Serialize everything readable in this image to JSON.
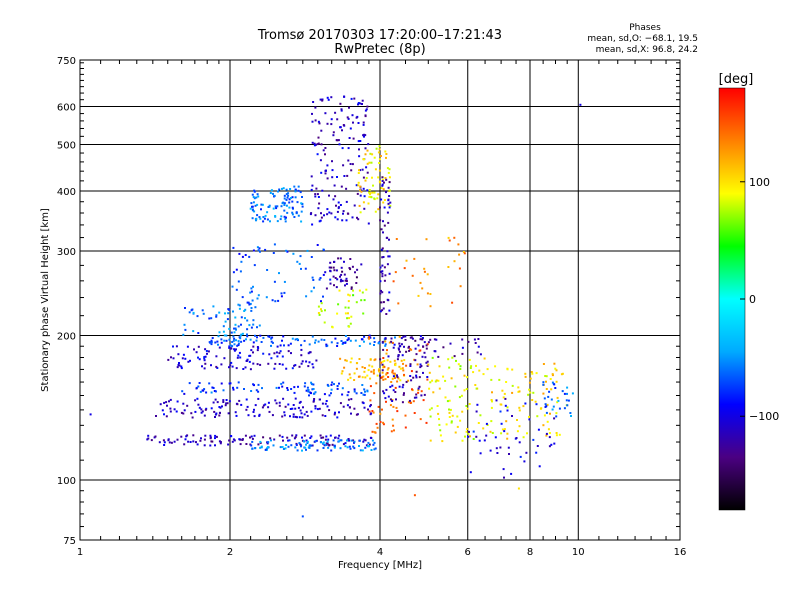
{
  "title": {
    "line1": "Tromsø 20170303 17:20:00–17:21:43",
    "line2": "RwPretec (8p)"
  },
  "phases": {
    "heading": "Phases",
    "o_line": "mean, sd,O: −68.1, 19.5",
    "x_line": "mean, sd,X:  96.8, 24.2"
  },
  "colorbar": {
    "unit_label": "[deg]",
    "ticks": [
      "100",
      "0",
      "−100"
    ],
    "tick_values": [
      100,
      0,
      -100
    ],
    "range": [
      -180,
      180
    ],
    "colors": [
      "#000000",
      "#4b0082",
      "#0000ff",
      "#00aaff",
      "#00ffff",
      "#00ff00",
      "#ffff00",
      "#ff8000",
      "#ff0000"
    ]
  },
  "chart_data": {
    "type": "scatter",
    "xlabel": "Frequency [MHz]",
    "ylabel": "Stationary phase Virtual Height [km]",
    "xscale": "log",
    "yscale": "log",
    "xlim": [
      1,
      16
    ],
    "ylim": [
      75,
      750
    ],
    "xticks": [
      1,
      2,
      4,
      6,
      8,
      10,
      16
    ],
    "xtick_labels": [
      "1",
      "2",
      "4",
      "6",
      "8",
      "10",
      "16"
    ],
    "yticks": [
      75,
      100,
      200,
      300,
      400,
      500,
      600,
      750
    ],
    "ytick_labels": [
      "75",
      "100",
      "200",
      "300",
      "400",
      "500",
      "600",
      "750"
    ],
    "grid": true,
    "color_encoding": "phase [deg]",
    "clusters": [
      {
        "f0": 1.35,
        "f1": 3.9,
        "h0": 118,
        "h1": 124,
        "phase": -115,
        "count": 130
      },
      {
        "f0": 2.2,
        "f1": 3.95,
        "h0": 115,
        "h1": 121,
        "phase": -55,
        "count": 90
      },
      {
        "f0": 1.4,
        "f1": 3.9,
        "h0": 135,
        "h1": 148,
        "phase": -110,
        "count": 150
      },
      {
        "f0": 1.6,
        "f1": 3.8,
        "h0": 150,
        "h1": 160,
        "phase": -75,
        "count": 90
      },
      {
        "f0": 1.5,
        "f1": 3.0,
        "h0": 170,
        "h1": 190,
        "phase": -105,
        "count": 110
      },
      {
        "f0": 1.8,
        "f1": 4.3,
        "h0": 190,
        "h1": 200,
        "phase": -70,
        "count": 110
      },
      {
        "f0": 1.6,
        "f1": 2.3,
        "h0": 200,
        "h1": 230,
        "phase": -60,
        "count": 60
      },
      {
        "f0": 2.0,
        "f1": 3.2,
        "h0": 230,
        "h1": 310,
        "phase": -70,
        "count": 70
      },
      {
        "f0": 2.2,
        "f1": 2.8,
        "h0": 345,
        "h1": 410,
        "phase": -60,
        "count": 110
      },
      {
        "f0": 2.9,
        "f1": 3.8,
        "h0": 340,
        "h1": 630,
        "phase": -110,
        "count": 170
      },
      {
        "f0": 3.1,
        "f1": 3.7,
        "h0": 250,
        "h1": 290,
        "phase": -125,
        "count": 45
      },
      {
        "f0": 3.6,
        "f1": 4.2,
        "h0": 360,
        "h1": 500,
        "phase": 100,
        "count": 70
      },
      {
        "f0": 4.0,
        "f1": 4.2,
        "h0": 220,
        "h1": 430,
        "phase": -115,
        "count": 60
      },
      {
        "f0": 3.3,
        "f1": 4.5,
        "h0": 160,
        "h1": 180,
        "phase": 115,
        "count": 70
      },
      {
        "f0": 3.0,
        "f1": 3.8,
        "h0": 205,
        "h1": 250,
        "phase": 80,
        "count": 35
      },
      {
        "f0": 3.8,
        "f1": 5.0,
        "h0": 125,
        "h1": 200,
        "phase": 140,
        "count": 80
      },
      {
        "f0": 4.0,
        "f1": 5.0,
        "h0": 145,
        "h1": 200,
        "phase": -120,
        "count": 80
      },
      {
        "f0": 5.0,
        "f1": 6.5,
        "h0": 120,
        "h1": 180,
        "phase": 90,
        "count": 80
      },
      {
        "f0": 4.3,
        "f1": 6.6,
        "h0": 180,
        "h1": 200,
        "phase": -120,
        "count": 40
      },
      {
        "f0": 6.5,
        "f1": 9.5,
        "h0": 120,
        "h1": 175,
        "phase": 100,
        "count": 90
      },
      {
        "f0": 6.0,
        "f1": 9.0,
        "h0": 100,
        "h1": 150,
        "phase": -100,
        "count": 50
      },
      {
        "f0": 8.5,
        "f1": 9.8,
        "h0": 135,
        "h1": 160,
        "phase": -60,
        "count": 30
      },
      {
        "f0": 4.2,
        "f1": 6.0,
        "h0": 230,
        "h1": 320,
        "phase": 130,
        "count": 30
      }
    ],
    "points": [
      {
        "f": 1.05,
        "h": 137,
        "phase": -100
      },
      {
        "f": 10.1,
        "h": 605,
        "phase": -100
      },
      {
        "f": 2.8,
        "h": 84,
        "phase": -70
      },
      {
        "f": 4.7,
        "h": 93,
        "phase": 150
      },
      {
        "f": 7.6,
        "h": 96,
        "phase": 100
      }
    ]
  }
}
